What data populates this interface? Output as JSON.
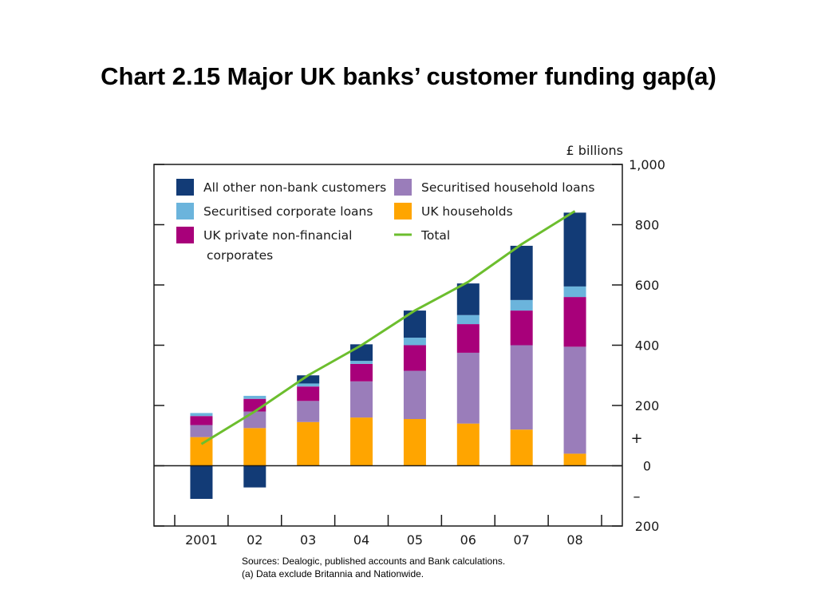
{
  "title": "Chart 2.15  Major UK banks’ customer funding gap(a)",
  "footnotes": {
    "sources": "Sources:  Dealogic, published accounts and Bank calculations.",
    "note": "(a) Data exclude Britannia and Nationwide."
  },
  "chart_data": {
    "type": "bar",
    "stacked": true,
    "unit_label": "£ billions",
    "categories": [
      "2001",
      "02",
      "03",
      "04",
      "05",
      "06",
      "07",
      "08"
    ],
    "ylim": [
      -200,
      1000
    ],
    "yticks": [
      {
        "value": 1000,
        "label": "1,000"
      },
      {
        "value": 800,
        "label": "800"
      },
      {
        "value": 600,
        "label": "600"
      },
      {
        "value": 400,
        "label": "400"
      },
      {
        "value": 200,
        "label": "200"
      },
      {
        "value": 0,
        "label": "0"
      },
      {
        "value": -200,
        "label": "200"
      }
    ],
    "sign_labels": {
      "plus": "+",
      "minus": "–"
    },
    "grid": false,
    "legend_position": "top-left inside plot",
    "series": [
      {
        "name": "UK households",
        "color": "#FFA500",
        "values": [
          95,
          125,
          145,
          160,
          155,
          140,
          120,
          40
        ]
      },
      {
        "name": "Securitised household loans",
        "color": "#9A7DBA",
        "values": [
          40,
          55,
          70,
          120,
          160,
          235,
          280,
          355
        ]
      },
      {
        "name": "UK private non-financial corporates",
        "color": "#A8007A",
        "values": [
          30,
          42,
          48,
          58,
          85,
          95,
          115,
          165
        ]
      },
      {
        "name": "Securitised corporate loans",
        "color": "#6BB4DC",
        "values": [
          10,
          10,
          10,
          10,
          25,
          30,
          35,
          35
        ]
      },
      {
        "name": "All other non-bank customers",
        "color": "#123B76",
        "values": [
          -110,
          -72,
          27,
          55,
          90,
          105,
          180,
          245
        ]
      }
    ],
    "total": {
      "name": "Total",
      "color": "#6CBE2E",
      "values": [
        72,
        180,
        300,
        400,
        515,
        610,
        735,
        845
      ]
    },
    "legend_order": [
      {
        "name": "All other non-bank customers",
        "label": "All other non-bank customers",
        "type": "box",
        "color": "#123B76"
      },
      {
        "name": "Securitised corporate loans",
        "label": "Securitised corporate loans",
        "type": "box",
        "color": "#6BB4DC"
      },
      {
        "name": "UK private non-financial corporates",
        "label": "UK private non-financial",
        "label2": "corporates",
        "type": "box",
        "color": "#A8007A"
      },
      {
        "name": "Securitised household loans",
        "label": "Securitised household loans",
        "type": "box",
        "color": "#9A7DBA"
      },
      {
        "name": "UK households",
        "label": "UK households",
        "type": "box",
        "color": "#FFA500"
      },
      {
        "name": "Total",
        "label": "Total",
        "type": "line",
        "color": "#6CBE2E"
      }
    ]
  }
}
